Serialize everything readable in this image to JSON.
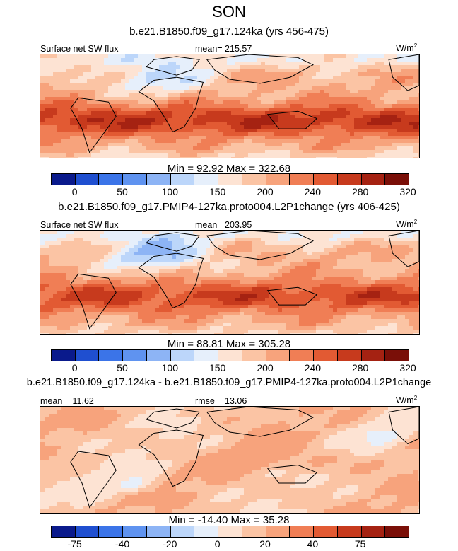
{
  "title": "SON",
  "panels": [
    {
      "header": "b.e21.B1850.f09_g17.124ka (yrs 456-475)",
      "left_label": "Surface net SW flux",
      "center_label": "mean= 215.57",
      "units": "W/m",
      "units_exp": "2",
      "minmax": "Min =  92.92 Max = 322.68",
      "colorbar": [
        "#0a1a8c",
        "#1f4fd0",
        "#3b74e8",
        "#5f93f0",
        "#8db4f5",
        "#bcd6fa",
        "#e6effb",
        "#fde3d3",
        "#fbc4a4",
        "#f7a37c",
        "#f07e55",
        "#e25a33",
        "#c73a1d",
        "#a52212",
        "#7a0f08"
      ],
      "ticks": [
        "0",
        "50",
        "100",
        "150",
        "200",
        "240",
        "280",
        "320"
      ],
      "style": "full"
    },
    {
      "header": "b.e21.B1850.f09_g17.PMIP4-127ka.proto004.L2P1change (yrs 406-425)",
      "left_label": "Surface net SW flux",
      "center_label": "mean= 203.95",
      "units": "W/m",
      "units_exp": "2",
      "minmax": "Min =  88.81 Max = 305.28",
      "colorbar": [
        "#0a1a8c",
        "#1f4fd0",
        "#3b74e8",
        "#5f93f0",
        "#8db4f5",
        "#bcd6fa",
        "#e6effb",
        "#fde3d3",
        "#fbc4a4",
        "#f7a37c",
        "#f07e55",
        "#e25a33",
        "#c73a1d",
        "#a52212",
        "#7a0f08"
      ],
      "ticks": [
        "0",
        "50",
        "100",
        "150",
        "200",
        "240",
        "280",
        "320"
      ],
      "style": "full2"
    },
    {
      "header": "b.e21.B1850.f09_g17.124ka - b.e21.B1850.f09_g17.PMIP4-127ka.proto004.L2P1change",
      "left_label": "mean = 11.62",
      "center_label": "rmse = 13.06",
      "units": "W/m",
      "units_exp": "2",
      "minmax": "Min = -14.40 Max = 35.28",
      "colorbar": [
        "#0a1a8c",
        "#1f4fd0",
        "#3b74e8",
        "#5f93f0",
        "#8db4f5",
        "#bcd6fa",
        "#e6effb",
        "#fde3d3",
        "#fbc4a4",
        "#f7a37c",
        "#f07e55",
        "#e25a33",
        "#c73a1d",
        "#a52212",
        "#7a0f08"
      ],
      "ticks": [
        "-75",
        "-40",
        "-20",
        "0",
        "20",
        "40",
        "75"
      ],
      "style": "diff"
    }
  ]
}
